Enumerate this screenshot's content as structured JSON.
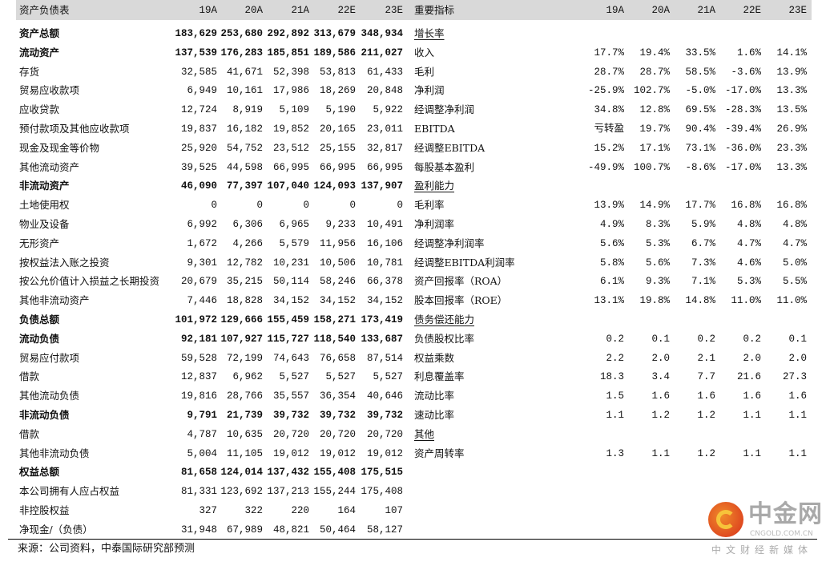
{
  "balance_sheet": {
    "title": "资产负债表",
    "columns": [
      "19A",
      "20A",
      "21A",
      "22E",
      "23E"
    ],
    "rows": [
      {
        "label": "资产总额",
        "bold": true,
        "values": [
          "183,629",
          "253,680",
          "292,892",
          "313,679",
          "348,934"
        ]
      },
      {
        "label": "流动资产",
        "bold": true,
        "values": [
          "137,539",
          "176,283",
          "185,851",
          "189,586",
          "211,027"
        ]
      },
      {
        "label": "存货",
        "values": [
          "32,585",
          "41,671",
          "52,398",
          "53,813",
          "61,433"
        ]
      },
      {
        "label": "贸易应收款项",
        "values": [
          "6,949",
          "10,161",
          "17,986",
          "18,269",
          "20,848"
        ]
      },
      {
        "label": "应收贷款",
        "values": [
          "12,724",
          "8,919",
          "5,109",
          "5,190",
          "5,922"
        ]
      },
      {
        "label": "预付款项及其他应收款项",
        "values": [
          "19,837",
          "16,182",
          "19,852",
          "20,165",
          "23,011"
        ]
      },
      {
        "label": "现金及现金等价物",
        "values": [
          "25,920",
          "54,752",
          "23,512",
          "25,155",
          "32,817"
        ]
      },
      {
        "label": "其他流动资产",
        "values": [
          "39,525",
          "44,598",
          "66,995",
          "66,995",
          "66,995"
        ]
      },
      {
        "label": "非流动资产",
        "bold": true,
        "values": [
          "46,090",
          "77,397",
          "107,040",
          "124,093",
          "137,907"
        ]
      },
      {
        "label": "土地使用权",
        "values": [
          "0",
          "0",
          "0",
          "0",
          "0"
        ]
      },
      {
        "label": "物业及设备",
        "values": [
          "6,992",
          "6,306",
          "6,965",
          "9,233",
          "10,491"
        ]
      },
      {
        "label": "无形资产",
        "values": [
          "1,672",
          "4,266",
          "5,579",
          "11,956",
          "16,106"
        ]
      },
      {
        "label": "按权益法入账之投资",
        "values": [
          "9,301",
          "12,782",
          "10,231",
          "10,506",
          "10,781"
        ]
      },
      {
        "label": "按公允价值计入损益之长期投资",
        "values": [
          "20,679",
          "35,215",
          "50,114",
          "58,246",
          "66,378"
        ]
      },
      {
        "label": "其他非流动资产",
        "values": [
          "7,446",
          "18,828",
          "34,152",
          "34,152",
          "34,152"
        ]
      },
      {
        "label": "负债总额",
        "bold": true,
        "values": [
          "101,972",
          "129,666",
          "155,459",
          "158,271",
          "173,419"
        ]
      },
      {
        "label": "流动负债",
        "bold": true,
        "values": [
          "92,181",
          "107,927",
          "115,727",
          "118,540",
          "133,687"
        ]
      },
      {
        "label": "贸易应付款项",
        "values": [
          "59,528",
          "72,199",
          "74,643",
          "76,658",
          "87,514"
        ]
      },
      {
        "label": "借款",
        "values": [
          "12,837",
          "6,962",
          "5,527",
          "5,527",
          "5,527"
        ]
      },
      {
        "label": "其他流动负债",
        "values": [
          "19,816",
          "28,766",
          "35,557",
          "36,354",
          "40,646"
        ]
      },
      {
        "label": "非流动负债",
        "bold": true,
        "values": [
          "9,791",
          "21,739",
          "39,732",
          "39,732",
          "39,732"
        ]
      },
      {
        "label": "借款",
        "values": [
          "4,787",
          "10,635",
          "20,720",
          "20,720",
          "20,720"
        ]
      },
      {
        "label": "其他非流动负债",
        "values": [
          "5,004",
          "11,105",
          "19,012",
          "19,012",
          "19,012"
        ]
      },
      {
        "label": "权益总额",
        "bold": true,
        "values": [
          "81,658",
          "124,014",
          "137,432",
          "155,408",
          "175,515"
        ]
      },
      {
        "label": "本公司拥有人应占权益",
        "values": [
          "81,331",
          "123,692",
          "137,213",
          "155,244",
          "175,408"
        ]
      },
      {
        "label": "非控股权益",
        "values": [
          "327",
          "322",
          "220",
          "164",
          "107"
        ]
      },
      {
        "label": "净现金/（负债）",
        "values": [
          "31,948",
          "67,989",
          "48,821",
          "50,464",
          "58,127"
        ]
      }
    ]
  },
  "key_metrics": {
    "title": "重要指标",
    "columns": [
      "19A",
      "20A",
      "21A",
      "22E",
      "23E"
    ],
    "rows": [
      {
        "label": "增长率",
        "section": true,
        "values": []
      },
      {
        "label": "收入",
        "values": [
          "17.7%",
          "19.4%",
          "33.5%",
          "1.6%",
          "14.1%"
        ]
      },
      {
        "label": "毛利",
        "values": [
          "28.7%",
          "28.7%",
          "58.5%",
          "-3.6%",
          "13.9%"
        ]
      },
      {
        "label": "净利润",
        "values": [
          "-25.9%",
          "102.7%",
          "-5.0%",
          "-17.0%",
          "13.3%"
        ]
      },
      {
        "label": "经调整净利润",
        "values": [
          "34.8%",
          "12.8%",
          "69.5%",
          "-28.3%",
          "13.5%"
        ]
      },
      {
        "label": "EBITDA",
        "values": [
          "亏转盈",
          "19.7%",
          "90.4%",
          "-39.4%",
          "26.9%"
        ]
      },
      {
        "label": "经调整EBITDA",
        "values": [
          "15.2%",
          "17.1%",
          "73.1%",
          "-36.0%",
          "23.3%"
        ]
      },
      {
        "label": "每股基本盈利",
        "values": [
          "-49.9%",
          "100.7%",
          "-8.6%",
          "-17.0%",
          "13.3%"
        ]
      },
      {
        "label": "盈利能力",
        "section": true,
        "values": []
      },
      {
        "label": "毛利率",
        "values": [
          "13.9%",
          "14.9%",
          "17.7%",
          "16.8%",
          "16.8%"
        ]
      },
      {
        "label": "净利润率",
        "values": [
          "4.9%",
          "8.3%",
          "5.9%",
          "4.8%",
          "4.8%"
        ]
      },
      {
        "label": "经调整净利润率",
        "values": [
          "5.6%",
          "5.3%",
          "6.7%",
          "4.7%",
          "4.7%"
        ]
      },
      {
        "label": "经调整EBITDA利润率",
        "values": [
          "5.8%",
          "5.6%",
          "7.3%",
          "4.6%",
          "5.0%"
        ]
      },
      {
        "label": "资产回报率（ROA）",
        "values": [
          "6.1%",
          "9.3%",
          "7.1%",
          "5.3%",
          "5.5%"
        ]
      },
      {
        "label": "股本回报率（ROE）",
        "values": [
          "13.1%",
          "19.8%",
          "14.8%",
          "11.0%",
          "11.0%"
        ]
      },
      {
        "label": "债务偿还能力",
        "section": true,
        "values": []
      },
      {
        "label": "负债股权比率",
        "values": [
          "0.2",
          "0.1",
          "0.2",
          "0.2",
          "0.1"
        ]
      },
      {
        "label": "权益乘数",
        "values": [
          "2.2",
          "2.0",
          "2.1",
          "2.0",
          "2.0"
        ]
      },
      {
        "label": "利息覆盖率",
        "values": [
          "18.3",
          "3.4",
          "7.7",
          "21.6",
          "27.3"
        ]
      },
      {
        "label": "流动比率",
        "values": [
          "1.5",
          "1.6",
          "1.6",
          "1.6",
          "1.6"
        ]
      },
      {
        "label": "速动比率",
        "values": [
          "1.1",
          "1.2",
          "1.2",
          "1.1",
          "1.1"
        ]
      },
      {
        "label": "其他",
        "section": true,
        "values": []
      },
      {
        "label": "资产周转率",
        "values": [
          "1.3",
          "1.1",
          "1.2",
          "1.1",
          "1.1"
        ]
      }
    ]
  },
  "footer": {
    "source": "来源：公司资料，中泰国际研究部预测"
  },
  "watermark": {
    "name": "中金网",
    "domain": "CNGOLD.COM.CN",
    "tagline": "中文财经新媒体"
  }
}
